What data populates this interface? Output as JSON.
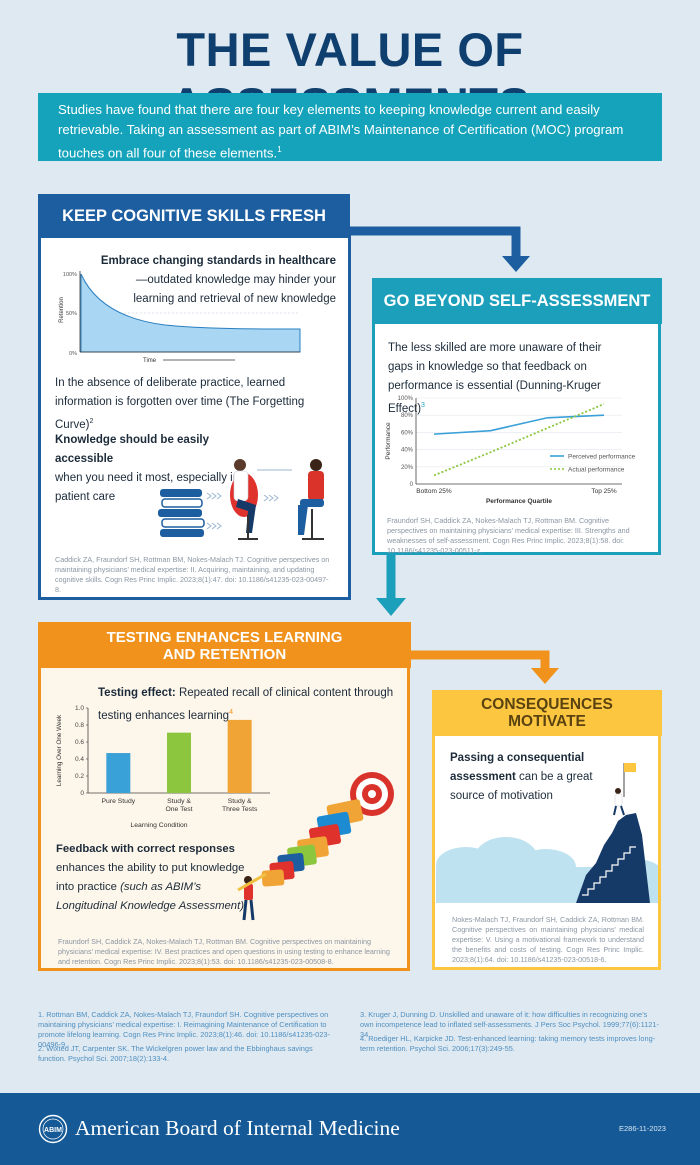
{
  "title": "THE VALUE OF ASSESSMENTS",
  "intro": {
    "text": "Studies have found that there are four key elements to keeping knowledge current and easily retrievable. Taking an assessment as part of ABIM’s Maintenance of Certification (MOC) program touches on all four of these elements.",
    "sup": "1"
  },
  "panel1": {
    "header": "KEEP COGNITIVE SKILLS FRESH",
    "bold1": "Embrace changing standards in healthcare",
    "text1": "—outdated knowledge may hinder your learning and retrieval of new knowledge",
    "curve_text": "In the absence of deliberate practice, learned information is forgotten over time (The Forgetting Curve)",
    "curve_sup": "2",
    "bold2": "Knowledge should be easily accessible",
    "text2": "when you need it most, especially in patient care",
    "citation": "Caddick ZA, Fraundorf SH, Rottman BM, Nokes-Malach TJ. Cognitive perspectives on maintaining physicians’ medical expertise: II. Acquiring, maintaining, and updating cognitive skills. Cogn Res Princ Implic. 2023;8(1):47. doi: 10.1186/s41235-023-00497-8.",
    "forgetting_curve": {
      "ylabel": "Retention",
      "xlabel": "Time",
      "yticks": [
        "100%",
        "50%",
        "0%"
      ]
    }
  },
  "panel2": {
    "header": "GO BEYOND SELF-ASSESSMENT",
    "text": "The less skilled are more unaware of their gaps in knowledge so that feedback on performance is essential (Dunning-Kruger Effect)",
    "sup": "3",
    "citation": "Fraundorf SH, Caddick ZA, Nokes-Malach TJ, Rottman BM. Cognitive perspectives on maintaining physicians’ medical expertise: III. Strengths and weaknesses of self-assessment. Cogn Res Princ Implic. 2023;8(1):58. doi: 10.1186/s41235-023-00511-z."
  },
  "panel3": {
    "header_line1": "TESTING ENHANCES LEARNING",
    "header_line2": "AND RETENTION",
    "bold1": "Testing effect:",
    "text1": " Repeated recall of clinical content through testing enhances learning",
    "sup": "4",
    "bold2": "Feedback with correct responses",
    "text2": "enhances the ability to put knowledge into practice",
    "italic2": "(such as ABIM’s Longitudinal Knowledge Assessment)",
    "citation": "Fraundorf SH, Caddick ZA, Nokes-Malach TJ, Rottman BM. Cognitive perspectives on maintaining physicians’ medical expertise: IV. Best practices and open questions in using testing to enhance learning and retention. Cogn Res Princ Implic. 2023;8(1):53. doi: 10.1186/s41235-023-00508-8."
  },
  "panel4": {
    "header_line1": "CONSEQUENCES",
    "header_line2": "MOTIVATE",
    "bold": "Passing a consequential assessment",
    "text": " can be a great source of motivation",
    "citation": "Nokes-Malach TJ, Fraundorf SH, Caddick ZA, Rottman BM. Cognitive perspectives on maintaining physicians’ medical expertise: V. Using a motivational framework to understand the benefits and costs of testing. Cogn Res Princ Implic. 2023;8(1):64. doi: 10.1186/s41235-023-00518-6."
  },
  "references": [
    "1.  Rottman BM, Caddick ZA, Nokes-Malach TJ, Fraundorf SH. Cognitive perspectives on maintaining physicians’ medical expertise: I. Reimagining Maintenance of Certification to promote lifelong learning. Cogn Res Princ Implic. 2023;8(1):46. doi: 10.1186/s41235-023-00496-9.",
    "2.  Wixted JT, Carpenter SK. The Wickelgren power law and the Ebbinghaus savings function. Psychol Sci. 2007;18(2):133-4.",
    "3.  Kruger J, Dunning D. Unskilled and unaware of it: how difficulties in recognizing one’s own incompetence lead to inflated self-assessments. J Pers Soc Psychol. 1999;77(6):1121-34.",
    "4.  Roediger HL, Karpicke JD. Test-enhanced learning: taking memory tests improves long-term retention. Psychol Sci. 2006;17(3):249-55."
  ],
  "footer": {
    "logo_text": "ABIM",
    "org_name": "American Board of Internal Medicine",
    "code": "E286-11-2023"
  },
  "colors": {
    "navy": "#0f3f6e",
    "blue": "#1d5ea1",
    "teal": "#1b9fbb",
    "orange": "#f0921c",
    "yellow": "#fcc640",
    "perceived": "#3aa0d8",
    "actual": "#8cc63f"
  },
  "chart_data": [
    {
      "type": "line",
      "x": [
        "Bottom 25%",
        "",
        "",
        "Top 25%"
      ],
      "xlabel": "Performance Quartile",
      "ylabel": "Performance",
      "ylim": [
        0,
        100
      ],
      "yticks": [
        "0",
        "20%",
        "40%",
        "60%",
        "80%",
        "100%"
      ],
      "series": [
        {
          "name": "Perceived performance",
          "values": [
            58,
            62,
            77,
            80
          ],
          "style": "solid"
        },
        {
          "name": "Actual performance",
          "values": [
            10,
            37,
            65,
            93
          ],
          "style": "dotted"
        }
      ],
      "legend": "bottom-right"
    },
    {
      "type": "bar",
      "categories": [
        "Pure Study",
        "Study &\nOne Test",
        "Study &\nThree Tests"
      ],
      "values": [
        0.47,
        0.71,
        0.86
      ],
      "colors": [
        "#3aa0d8",
        "#8cc63f",
        "#f0a435"
      ],
      "xlabel": "Learning Condition",
      "ylabel": "Learning Over One Week",
      "ylim": [
        0,
        1.0
      ],
      "yticks": [
        "0",
        "0.2",
        "0.4",
        "0.6",
        "0.8",
        "1.0"
      ]
    }
  ]
}
